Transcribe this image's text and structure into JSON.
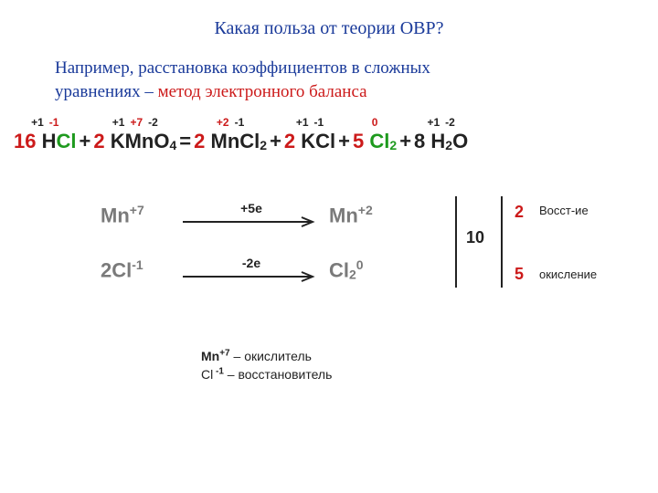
{
  "title": "Какая польза от теории ОВР?",
  "intro": {
    "line1": "Например, расстановка коэффициентов в сложных",
    "line2a": "уравнениях – ",
    "line2b": "метод электронного баланса"
  },
  "colors": {
    "red": "#cc1a1a",
    "green": "#1e9a1e",
    "blue": "#1a3a9a",
    "dark": "#222222",
    "grey": "#7a7a7a"
  },
  "equation": [
    {
      "type": "term",
      "coef": "16",
      "coefColor": "#cc1a1a",
      "parts": [
        {
          "t": "H",
          "c": "#222222"
        },
        {
          "t": "Cl",
          "c": "#1e9a1e"
        }
      ],
      "ox": [
        {
          "v": "+1",
          "c": "#222222"
        },
        {
          "v": "-1",
          "c": "#cc1a1a"
        }
      ]
    },
    {
      "type": "op",
      "text": "+"
    },
    {
      "type": "term",
      "coef": "2",
      "coefColor": "#cc1a1a",
      "parts": [
        {
          "t": "K",
          "c": "#222222"
        },
        {
          "t": "Mn",
          "c": "#222222"
        },
        {
          "t": "O",
          "c": "#222222"
        },
        {
          "t": "4",
          "sub": true,
          "c": "#222222"
        }
      ],
      "ox": [
        {
          "v": "+1",
          "c": "#222222"
        },
        {
          "v": "+7",
          "c": "#cc1a1a"
        },
        {
          "v": "-2",
          "c": "#222222"
        }
      ]
    },
    {
      "type": "op",
      "text": "="
    },
    {
      "type": "term",
      "coef": "2",
      "coefColor": "#cc1a1a",
      "parts": [
        {
          "t": "Mn",
          "c": "#222222"
        },
        {
          "t": "Cl",
          "c": "#222222"
        },
        {
          "t": "2",
          "sub": true,
          "c": "#222222"
        }
      ],
      "ox": [
        {
          "v": "+2",
          "c": "#cc1a1a"
        },
        {
          "v": "-1",
          "c": "#222222"
        }
      ]
    },
    {
      "type": "op",
      "text": "+"
    },
    {
      "type": "term",
      "coef": "2",
      "coefColor": "#cc1a1a",
      "parts": [
        {
          "t": "K",
          "c": "#222222"
        },
        {
          "t": "Cl",
          "c": "#222222"
        }
      ],
      "ox": [
        {
          "v": "+1",
          "c": "#222222"
        },
        {
          "v": "-1",
          "c": "#222222"
        }
      ]
    },
    {
      "type": "op",
      "text": "+"
    },
    {
      "type": "term",
      "coef": "5",
      "coefColor": "#cc1a1a",
      "parts": [
        {
          "t": "Cl",
          "c": "#1e9a1e"
        },
        {
          "t": "2",
          "sub": true,
          "c": "#1e9a1e"
        }
      ],
      "ox": [
        {
          "v": "0",
          "c": "#cc1a1a"
        }
      ]
    },
    {
      "type": "op",
      "text": "+"
    },
    {
      "type": "term",
      "coef": "8",
      "coefColor": "#222222",
      "parts": [
        {
          "t": "H",
          "c": "#222222"
        },
        {
          "t": "2",
          "sub": true,
          "c": "#222222"
        },
        {
          "t": "O",
          "c": "#222222"
        }
      ],
      "ox": [
        {
          "v": "+1",
          "c": "#222222"
        },
        {
          "v": "-2",
          "c": "#222222"
        }
      ]
    }
  ],
  "half": {
    "top": {
      "left": {
        "pre": "",
        "el": "Mn",
        "sup": "+7"
      },
      "label": "+5е",
      "right": {
        "pre": "",
        "el": "Mn",
        "sup": "+2",
        "sub": ""
      }
    },
    "bot": {
      "left": {
        "pre": "2",
        "el": "Cl",
        "sup": "-1"
      },
      "label": "-2е",
      "right": {
        "pre": "",
        "el": "Cl",
        "sup": "0",
        "sub": "2"
      }
    }
  },
  "balance": {
    "lcm": "10",
    "factorTop": "2",
    "factorBot": "5",
    "procTop": "Восст-ие",
    "procBot": "окисление"
  },
  "conclusion": {
    "mn": {
      "species": "Mn",
      "sup": "+7",
      "rest": " – окислитель"
    },
    "cl": {
      "species": "Cl",
      "sup": " -1",
      "rest": " – восстановитель"
    }
  }
}
